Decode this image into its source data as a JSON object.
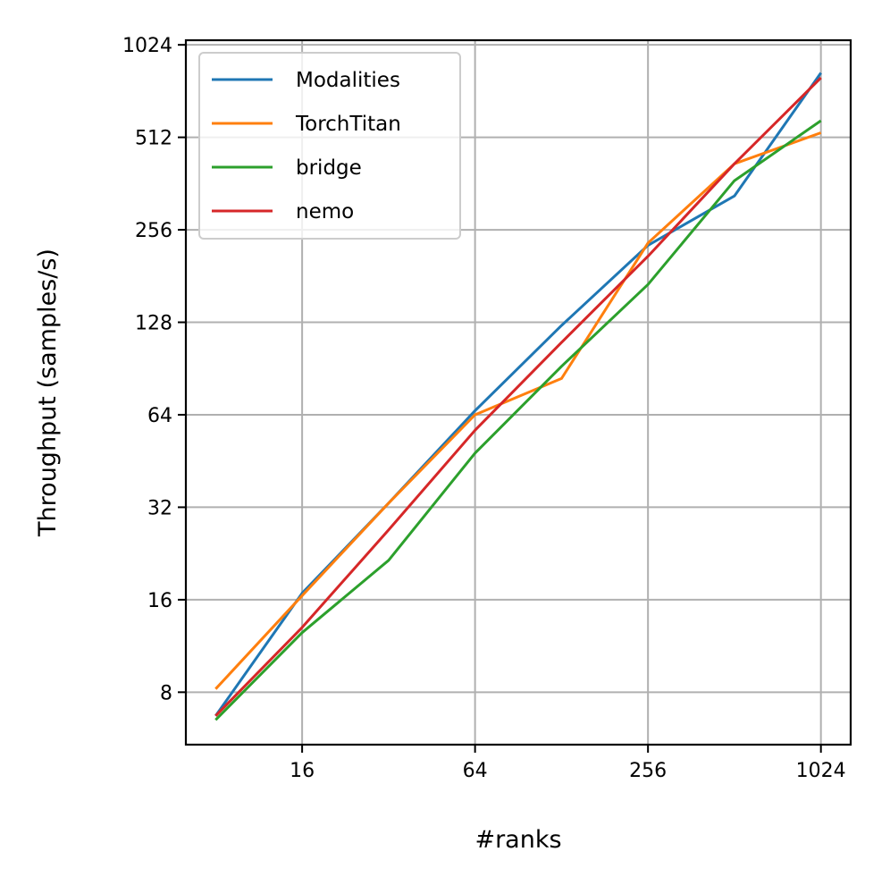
{
  "chart_data": {
    "type": "line",
    "title": "",
    "xlabel": "#ranks",
    "ylabel": "Throughput (samples/s)",
    "x_scale": "log2",
    "y_scale": "log2",
    "xlim": [
      6.3,
      1300
    ],
    "ylim": [
      5.4,
      1060
    ],
    "x_ticks": [
      16,
      64,
      256,
      1024
    ],
    "x_tick_labels": [
      "16",
      "64",
      "256",
      "1024"
    ],
    "y_ticks": [
      8,
      16,
      32,
      64,
      128,
      256,
      512,
      1024
    ],
    "y_tick_labels": [
      "8",
      "16",
      "32",
      "64",
      "128",
      "256",
      "512",
      "1024"
    ],
    "grid": true,
    "legend_position": "top-left",
    "x": [
      8,
      16,
      32,
      64,
      128,
      256,
      512,
      1024
    ],
    "series": [
      {
        "name": "Modalities",
        "color": "#1f77b4",
        "values": [
          6.7,
          16.8,
          33,
          66,
          125,
          228,
          330,
          830
        ]
      },
      {
        "name": "TorchTitan",
        "color": "#ff7f0e",
        "values": [
          8.2,
          16.5,
          33,
          64,
          84,
          232,
          420,
          530
        ]
      },
      {
        "name": "bridge",
        "color": "#2ca02c",
        "values": [
          6.5,
          12.5,
          21.5,
          48,
          92,
          170,
          370,
          580
        ]
      },
      {
        "name": "nemo",
        "color": "#d62728",
        "values": [
          6.7,
          13,
          27,
          57,
          110,
          210,
          420,
          800
        ]
      }
    ]
  }
}
